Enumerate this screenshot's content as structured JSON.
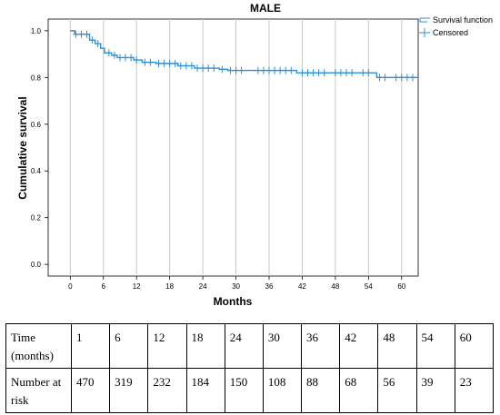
{
  "chart_data": {
    "type": "line",
    "title": "MALE",
    "xlabel": "Months",
    "ylabel": "Cumulative survival",
    "xlim": [
      -4,
      63
    ],
    "ylim": [
      -0.05,
      1.05
    ],
    "xticks": [
      "0",
      "6",
      "12",
      "18",
      "24",
      "30",
      "36",
      "42",
      "48",
      "54",
      "60"
    ],
    "xtick_values": [
      0,
      6,
      12,
      18,
      24,
      30,
      36,
      42,
      48,
      54,
      60
    ],
    "yticks": [
      "0.0",
      "0.2",
      "0.4",
      "0.6",
      "0.8",
      "1.0"
    ],
    "ytick_values": [
      0,
      0.2,
      0.4,
      0.6,
      0.8,
      1.0
    ],
    "grid": "vertical",
    "legend_position": "top-right",
    "legend": [
      "Survival function",
      "Censored"
    ],
    "series_color": "#2e8fd8",
    "series": [
      {
        "name": "Survival function",
        "steps": [
          {
            "t": 0,
            "s": 1.0
          },
          {
            "t": 0.8,
            "s": 0.985
          },
          {
            "t": 3.5,
            "s": 0.96
          },
          {
            "t": 4.5,
            "s": 0.945
          },
          {
            "t": 5.5,
            "s": 0.925
          },
          {
            "t": 6.2,
            "s": 0.905
          },
          {
            "t": 7.5,
            "s": 0.895
          },
          {
            "t": 8.5,
            "s": 0.885
          },
          {
            "t": 11.5,
            "s": 0.875
          },
          {
            "t": 13,
            "s": 0.865
          },
          {
            "t": 15.5,
            "s": 0.86
          },
          {
            "t": 19.5,
            "s": 0.85
          },
          {
            "t": 22.5,
            "s": 0.84
          },
          {
            "t": 27,
            "s": 0.835
          },
          {
            "t": 28.5,
            "s": 0.83
          },
          {
            "t": 41,
            "s": 0.82
          },
          {
            "t": 55.5,
            "s": 0.8
          }
        ],
        "end_t": 63
      },
      {
        "name": "Censored",
        "points": [
          {
            "t": 1,
            "s": 0.985
          },
          {
            "t": 2,
            "s": 0.985
          },
          {
            "t": 3,
            "s": 0.985
          },
          {
            "t": 4,
            "s": 0.96
          },
          {
            "t": 5,
            "s": 0.945
          },
          {
            "t": 7,
            "s": 0.905
          },
          {
            "t": 8,
            "s": 0.895
          },
          {
            "t": 9,
            "s": 0.885
          },
          {
            "t": 10,
            "s": 0.885
          },
          {
            "t": 11,
            "s": 0.885
          },
          {
            "t": 12,
            "s": 0.875
          },
          {
            "t": 13.5,
            "s": 0.865
          },
          {
            "t": 14.5,
            "s": 0.865
          },
          {
            "t": 16,
            "s": 0.86
          },
          {
            "t": 17,
            "s": 0.86
          },
          {
            "t": 18,
            "s": 0.86
          },
          {
            "t": 19,
            "s": 0.86
          },
          {
            "t": 20,
            "s": 0.85
          },
          {
            "t": 21,
            "s": 0.85
          },
          {
            "t": 22,
            "s": 0.85
          },
          {
            "t": 23,
            "s": 0.84
          },
          {
            "t": 24,
            "s": 0.84
          },
          {
            "t": 25,
            "s": 0.84
          },
          {
            "t": 26,
            "s": 0.84
          },
          {
            "t": 27.5,
            "s": 0.835
          },
          {
            "t": 29,
            "s": 0.83
          },
          {
            "t": 30,
            "s": 0.83
          },
          {
            "t": 31,
            "s": 0.83
          },
          {
            "t": 34,
            "s": 0.83
          },
          {
            "t": 35,
            "s": 0.83
          },
          {
            "t": 36,
            "s": 0.83
          },
          {
            "t": 37,
            "s": 0.83
          },
          {
            "t": 38,
            "s": 0.83
          },
          {
            "t": 39,
            "s": 0.83
          },
          {
            "t": 40,
            "s": 0.83
          },
          {
            "t": 42,
            "s": 0.82
          },
          {
            "t": 43,
            "s": 0.82
          },
          {
            "t": 44,
            "s": 0.82
          },
          {
            "t": 45,
            "s": 0.82
          },
          {
            "t": 46,
            "s": 0.82
          },
          {
            "t": 48,
            "s": 0.82
          },
          {
            "t": 49,
            "s": 0.82
          },
          {
            "t": 50,
            "s": 0.82
          },
          {
            "t": 51,
            "s": 0.82
          },
          {
            "t": 53,
            "s": 0.82
          },
          {
            "t": 54,
            "s": 0.82
          },
          {
            "t": 56,
            "s": 0.8
          },
          {
            "t": 57,
            "s": 0.8
          },
          {
            "t": 59,
            "s": 0.8
          },
          {
            "t": 60,
            "s": 0.8
          },
          {
            "t": 61,
            "s": 0.8
          },
          {
            "t": 62,
            "s": 0.8
          }
        ]
      }
    ]
  },
  "table": {
    "rows": [
      [
        "Time (months)",
        "1",
        "6",
        "12",
        "18",
        "24",
        "30",
        "36",
        "42",
        "48",
        "54",
        "60"
      ],
      [
        "Number at risk",
        "470",
        "319",
        "232",
        "184",
        "150",
        "108",
        "88",
        "68",
        "56",
        "39",
        "23"
      ]
    ]
  }
}
